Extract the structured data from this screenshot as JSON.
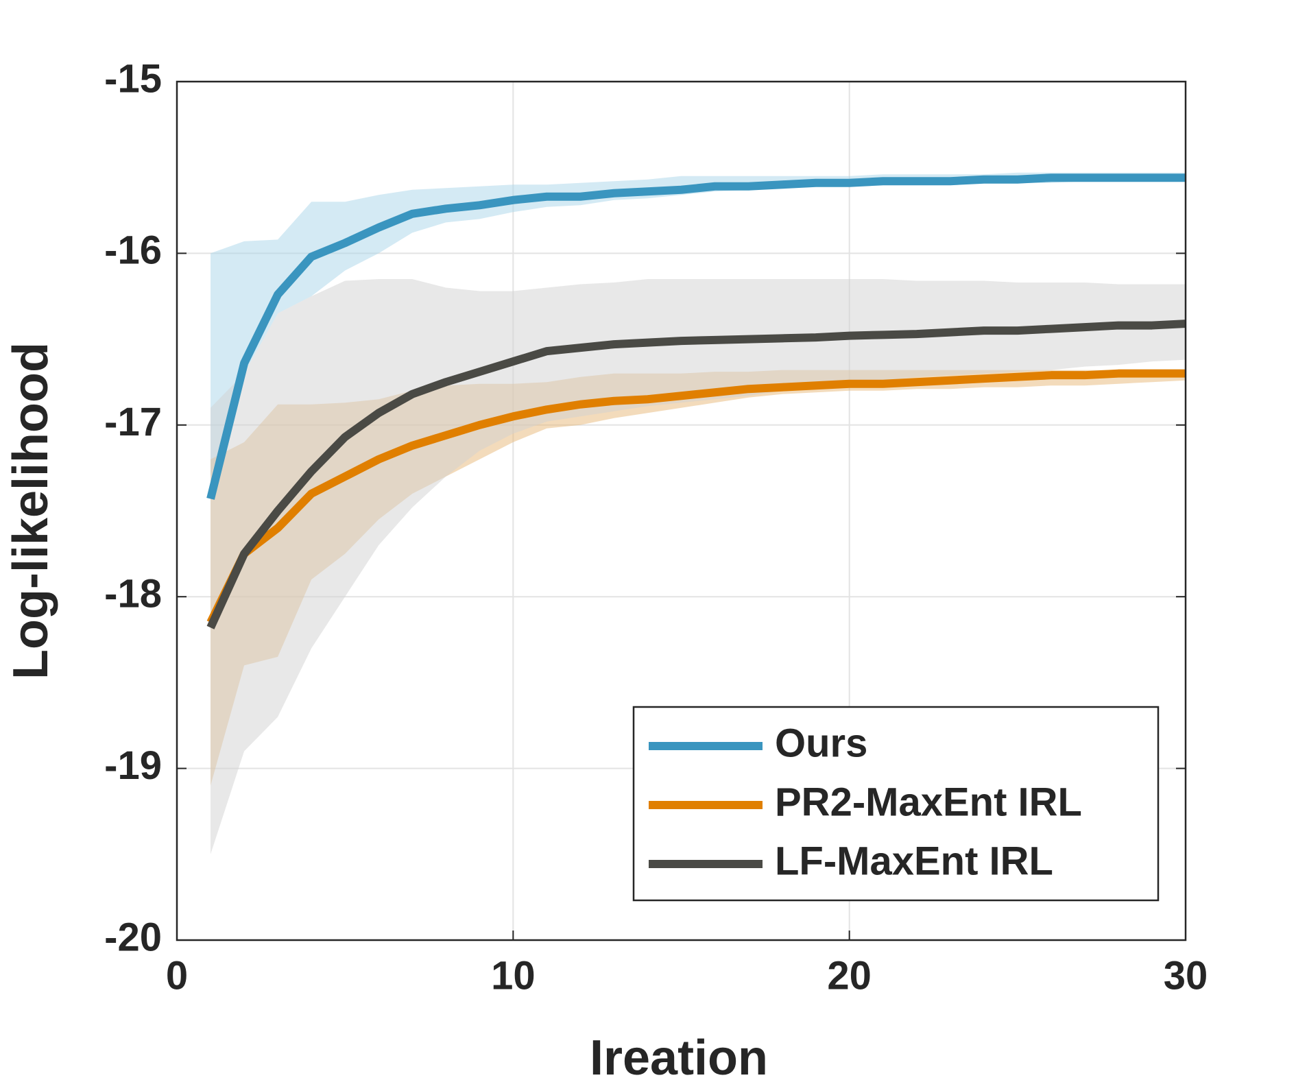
{
  "chart_data": {
    "type": "line",
    "xlabel": "Ireation",
    "ylabel": "Log-likelihood",
    "x": [
      1,
      2,
      3,
      4,
      5,
      6,
      7,
      8,
      9,
      10,
      11,
      12,
      13,
      14,
      15,
      16,
      17,
      18,
      19,
      20,
      21,
      22,
      23,
      24,
      25,
      26,
      27,
      28,
      29,
      30
    ],
    "xlim": [
      0,
      30
    ],
    "xticks": [
      0,
      10,
      20,
      30
    ],
    "ylim": [
      -20,
      -15
    ],
    "yticks": [
      -20,
      -19,
      -18,
      -17,
      -16,
      -15
    ],
    "grid": true,
    "legend": "lower right",
    "series": [
      {
        "name": "Ours",
        "color": "#3a95bf",
        "band_color": "#a9d6ea",
        "values": [
          -17.43,
          -16.64,
          -16.24,
          -16.02,
          -15.94,
          -15.85,
          -15.77,
          -15.74,
          -15.72,
          -15.69,
          -15.67,
          -15.67,
          -15.65,
          -15.64,
          -15.63,
          -15.61,
          -15.61,
          -15.6,
          -15.59,
          -15.59,
          -15.58,
          -15.58,
          -15.58,
          -15.57,
          -15.57,
          -15.56,
          -15.56,
          -15.56,
          -15.56,
          -15.56
        ],
        "upper": [
          -16.0,
          -15.93,
          -15.92,
          -15.7,
          -15.7,
          -15.66,
          -15.63,
          -15.62,
          -15.61,
          -15.6,
          -15.6,
          -15.59,
          -15.58,
          -15.57,
          -15.55,
          -15.55,
          -15.55,
          -15.55,
          -15.55,
          -15.55,
          -15.54,
          -15.54,
          -15.54,
          -15.54,
          -15.53,
          -15.53,
          -15.53,
          -15.53,
          -15.53,
          -15.53
        ],
        "lower": [
          -17.3,
          -16.7,
          -16.35,
          -16.25,
          -16.1,
          -16.0,
          -15.88,
          -15.82,
          -15.8,
          -15.76,
          -15.73,
          -15.72,
          -15.69,
          -15.68,
          -15.66,
          -15.64,
          -15.63,
          -15.62,
          -15.61,
          -15.6,
          -15.6,
          -15.6,
          -15.6,
          -15.59,
          -15.59,
          -15.59,
          -15.58,
          -15.58,
          -15.58,
          -15.58
        ]
      },
      {
        "name": "PR2-MaxEnt IRL",
        "color": "#e07f00",
        "band_color": "#e8b878",
        "values": [
          -18.15,
          -17.75,
          -17.6,
          -17.4,
          -17.3,
          -17.2,
          -17.12,
          -17.06,
          -17.0,
          -16.95,
          -16.91,
          -16.88,
          -16.86,
          -16.85,
          -16.83,
          -16.81,
          -16.79,
          -16.78,
          -16.77,
          -16.76,
          -16.76,
          -16.75,
          -16.74,
          -16.73,
          -16.72,
          -16.71,
          -16.71,
          -16.7,
          -16.7,
          -16.7
        ],
        "upper": [
          -17.2,
          -17.1,
          -16.88,
          -16.88,
          -16.87,
          -16.85,
          -16.8,
          -16.77,
          -16.76,
          -16.76,
          -16.75,
          -16.72,
          -16.7,
          -16.7,
          -16.7,
          -16.69,
          -16.69,
          -16.68,
          -16.68,
          -16.68,
          -16.68,
          -16.68,
          -16.68,
          -16.68,
          -16.68,
          -16.68,
          -16.68,
          -16.68,
          -16.68,
          -16.68
        ],
        "lower": [
          -19.1,
          -18.4,
          -18.35,
          -17.9,
          -17.75,
          -17.55,
          -17.4,
          -17.3,
          -17.2,
          -17.1,
          -17.02,
          -17.0,
          -16.96,
          -16.93,
          -16.9,
          -16.87,
          -16.84,
          -16.82,
          -16.81,
          -16.8,
          -16.8,
          -16.79,
          -16.79,
          -16.78,
          -16.78,
          -16.77,
          -16.77,
          -16.76,
          -16.75,
          -16.74
        ]
      },
      {
        "name": "LF-MaxEnt IRL",
        "color": "#4a4a45",
        "band_color": "#d2d2d2",
        "values": [
          -18.18,
          -17.75,
          -17.5,
          -17.27,
          -17.07,
          -16.93,
          -16.82,
          -16.75,
          -16.69,
          -16.63,
          -16.57,
          -16.55,
          -16.53,
          -16.52,
          -16.51,
          -16.505,
          -16.5,
          -16.495,
          -16.49,
          -16.48,
          -16.475,
          -16.47,
          -16.46,
          -16.45,
          -16.45,
          -16.44,
          -16.43,
          -16.42,
          -16.42,
          -16.41
        ],
        "upper": [
          -16.9,
          -16.7,
          -16.35,
          -16.25,
          -16.16,
          -16.15,
          -16.15,
          -16.2,
          -16.22,
          -16.22,
          -16.2,
          -16.18,
          -16.17,
          -16.15,
          -16.15,
          -16.15,
          -16.15,
          -16.15,
          -16.15,
          -16.15,
          -16.15,
          -16.16,
          -16.16,
          -16.16,
          -16.17,
          -16.17,
          -16.17,
          -16.18,
          -16.18,
          -16.18
        ],
        "lower": [
          -19.5,
          -18.9,
          -18.7,
          -18.3,
          -18.0,
          -17.7,
          -17.48,
          -17.3,
          -17.15,
          -17.05,
          -16.98,
          -16.95,
          -16.92,
          -16.89,
          -16.87,
          -16.85,
          -16.83,
          -16.8,
          -16.78,
          -16.76,
          -16.74,
          -16.72,
          -16.71,
          -16.7,
          -16.69,
          -16.68,
          -16.66,
          -16.65,
          -16.63,
          -16.62
        ]
      }
    ]
  }
}
